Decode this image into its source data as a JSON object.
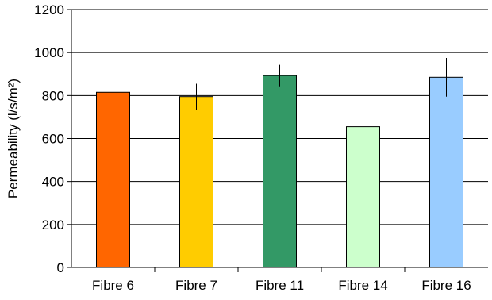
{
  "chart_data": {
    "type": "bar",
    "title": "",
    "xlabel": "",
    "ylabel": "Permeability (l/s/m²)",
    "ylim": [
      0,
      1200
    ],
    "yticks": [
      0,
      200,
      400,
      600,
      800,
      1000,
      1200
    ],
    "y_tick_labels": [
      "0",
      "200",
      "400",
      "600",
      "800",
      "1000",
      "1200"
    ],
    "grid": true,
    "legend": "none",
    "categories": [
      "Fibre 6",
      "Fibre 7",
      "Fibre 11",
      "Fibre 14",
      "Fibre 16"
    ],
    "values": [
      815,
      795,
      893,
      655,
      885
    ],
    "error": [
      95,
      60,
      50,
      75,
      90
    ],
    "colors": [
      "#ff6600",
      "#ffcc00",
      "#339966",
      "#ccffcc",
      "#99ccff"
    ]
  }
}
